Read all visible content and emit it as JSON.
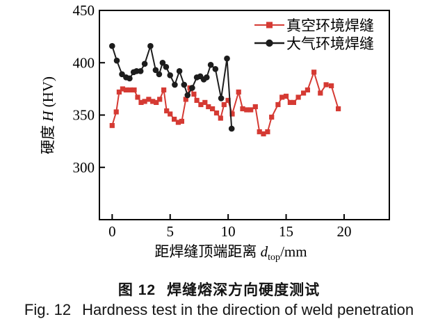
{
  "figure": {
    "caption_zh": {
      "fig_label": "图 12",
      "text": "焊缝熔深方向硬度测试"
    },
    "caption_en": {
      "fig_label": "Fig. 12",
      "text": "Hardness test in the direction of weld penetration"
    }
  },
  "chart_data": {
    "type": "line",
    "title": "",
    "xlabel": {
      "prefix": "距焊缝顶端距离 ",
      "var": "d",
      "sub": "top",
      "suffix": "/mm"
    },
    "ylabel": {
      "prefix": "硬度 ",
      "var": "H",
      "suffix": " (HV)"
    },
    "xlim": [
      -1.1,
      23.9
    ],
    "ylim": [
      250,
      450
    ],
    "x_ticks": [
      "0",
      "5",
      "10",
      "15",
      "20"
    ],
    "x_tick_values": [
      0,
      5,
      10,
      15,
      20
    ],
    "y_ticks": [
      "300",
      "350",
      "400",
      "450"
    ],
    "y_tick_values": [
      300,
      350,
      400,
      450
    ],
    "grid": false,
    "legend_position": "top-right",
    "axis_color": "#000000",
    "series": [
      {
        "name": "vacuum-environment-weld",
        "label": "真空环境焊缝",
        "color": "#d53a33",
        "marker": "square",
        "points": [
          [
            0,
            340
          ],
          [
            0.35,
            353
          ],
          [
            0.6,
            372
          ],
          [
            0.9,
            375
          ],
          [
            1.2,
            374
          ],
          [
            1.55,
            374
          ],
          [
            1.9,
            374
          ],
          [
            2.2,
            367
          ],
          [
            2.5,
            362
          ],
          [
            2.8,
            363
          ],
          [
            3.15,
            365
          ],
          [
            3.5,
            363
          ],
          [
            3.8,
            362
          ],
          [
            4.1,
            365
          ],
          [
            4.45,
            374
          ],
          [
            4.7,
            354
          ],
          [
            5.0,
            351
          ],
          [
            5.35,
            346
          ],
          [
            5.7,
            343
          ],
          [
            6.0,
            344
          ],
          [
            6.35,
            365
          ],
          [
            6.7,
            376
          ],
          [
            7.05,
            370
          ],
          [
            7.3,
            364
          ],
          [
            7.65,
            360
          ],
          [
            8.0,
            362
          ],
          [
            8.3,
            358
          ],
          [
            8.65,
            356
          ],
          [
            9.0,
            352
          ],
          [
            9.35,
            347
          ],
          [
            9.65,
            360
          ],
          [
            10.0,
            364
          ],
          [
            10.35,
            351
          ],
          [
            10.9,
            372
          ],
          [
            11.25,
            356
          ],
          [
            11.6,
            355
          ],
          [
            11.95,
            355
          ],
          [
            12.35,
            358
          ],
          [
            12.7,
            334
          ],
          [
            13.05,
            332
          ],
          [
            13.4,
            334
          ],
          [
            13.75,
            348
          ],
          [
            14.3,
            360
          ],
          [
            14.65,
            367
          ],
          [
            15.0,
            368
          ],
          [
            15.35,
            362
          ],
          [
            15.65,
            362
          ],
          [
            16.05,
            367
          ],
          [
            16.5,
            371
          ],
          [
            16.85,
            374
          ],
          [
            17.4,
            391
          ],
          [
            17.95,
            371
          ],
          [
            18.45,
            379
          ],
          [
            18.9,
            378
          ],
          [
            19.5,
            356
          ]
        ]
      },
      {
        "name": "atmosphere-environment-weld",
        "label": "大气环境焊缝",
        "color": "#1c1c1c",
        "marker": "circle",
        "points": [
          [
            0,
            416
          ],
          [
            0.4,
            402
          ],
          [
            0.85,
            389
          ],
          [
            1.2,
            386
          ],
          [
            1.5,
            385
          ],
          [
            1.85,
            391
          ],
          [
            2.1,
            392
          ],
          [
            2.45,
            392
          ],
          [
            2.8,
            399
          ],
          [
            3.3,
            416
          ],
          [
            3.75,
            393
          ],
          [
            4.05,
            389
          ],
          [
            4.35,
            400
          ],
          [
            4.65,
            396
          ],
          [
            5.0,
            388
          ],
          [
            5.4,
            379
          ],
          [
            5.8,
            392
          ],
          [
            6.2,
            379
          ],
          [
            6.5,
            369
          ],
          [
            6.9,
            376
          ],
          [
            7.3,
            386
          ],
          [
            7.6,
            387
          ],
          [
            7.9,
            384
          ],
          [
            8.15,
            386
          ],
          [
            8.5,
            398
          ],
          [
            8.9,
            394
          ],
          [
            9.4,
            366
          ],
          [
            9.9,
            404
          ],
          [
            10.3,
            337
          ]
        ]
      }
    ]
  }
}
